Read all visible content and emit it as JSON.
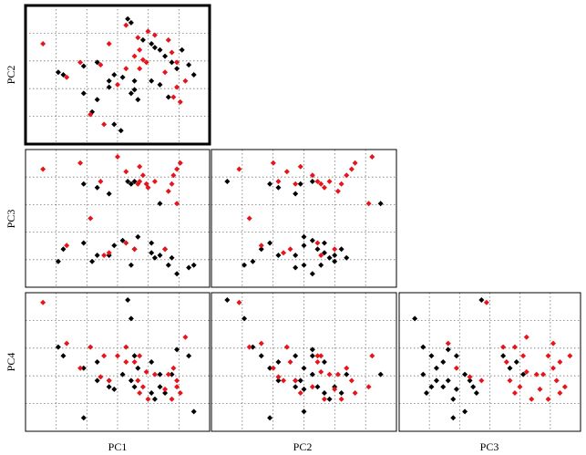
{
  "chart_data": {
    "type": "scatter",
    "layout": "lower-triangle scatter matrix",
    "variables": [
      "PC1",
      "PC2",
      "PC3",
      "PC4"
    ],
    "row_labels": [
      "PC2",
      "PC3",
      "PC4"
    ],
    "column_labels": [
      "PC1",
      "PC2",
      "PC3"
    ],
    "ranges": {
      "PC1": [
        0,
        1
      ],
      "PC2": [
        0,
        1
      ],
      "PC3": [
        0,
        1
      ],
      "PC4": [
        0,
        1
      ]
    },
    "grid": true,
    "grid_style": "dotted",
    "highlighted_panel": "PC2 vs PC1",
    "groups": [
      {
        "color": "#000000",
        "marker": "diamond"
      },
      {
        "color": "#e8141b",
        "marker": "diamond"
      }
    ],
    "panels": [
      {
        "x": "PC1",
        "y": "PC2",
        "groups": [
          [
            [
              0.56,
              0.95
            ],
            [
              0.58,
              0.92
            ],
            [
              0.15,
              0.52
            ],
            [
              0.18,
              0.5
            ],
            [
              0.3,
              0.57
            ],
            [
              0.38,
              0.6
            ],
            [
              0.45,
              0.45
            ],
            [
              0.48,
              0.5
            ],
            [
              0.53,
              0.48
            ],
            [
              0.6,
              0.45
            ],
            [
              0.7,
              0.75
            ],
            [
              0.72,
              0.72
            ],
            [
              0.75,
              0.7
            ],
            [
              0.78,
              0.65
            ],
            [
              0.82,
              0.6
            ],
            [
              0.85,
              0.55
            ],
            [
              0.92,
              0.58
            ],
            [
              0.95,
              0.5
            ],
            [
              0.3,
              0.35
            ],
            [
              0.38,
              0.3
            ],
            [
              0.45,
              0.4
            ],
            [
              0.58,
              0.35
            ],
            [
              0.6,
              0.38
            ],
            [
              0.62,
              0.3
            ],
            [
              0.7,
              0.45
            ],
            [
              0.75,
              0.42
            ],
            [
              0.8,
              0.32
            ],
            [
              0.35,
              0.2
            ],
            [
              0.48,
              0.1
            ],
            [
              0.52,
              0.05
            ],
            [
              0.88,
              0.7
            ],
            [
              0.65,
              0.78
            ]
          ],
          [
            [
              0.06,
              0.75
            ],
            [
              0.2,
              0.48
            ],
            [
              0.28,
              0.6
            ],
            [
              0.4,
              0.58
            ],
            [
              0.45,
              0.75
            ],
            [
              0.55,
              0.9
            ],
            [
              0.6,
              0.65
            ],
            [
              0.62,
              0.8
            ],
            [
              0.63,
              0.7
            ],
            [
              0.65,
              0.62
            ],
            [
              0.63,
              0.55
            ],
            [
              0.67,
              0.6
            ],
            [
              0.68,
              0.85
            ],
            [
              0.72,
              0.82
            ],
            [
              0.78,
              0.52
            ],
            [
              0.8,
              0.78
            ],
            [
              0.82,
              0.68
            ],
            [
              0.83,
              0.32
            ],
            [
              0.85,
              0.4
            ],
            [
              0.87,
              0.28
            ],
            [
              0.85,
              0.6
            ],
            [
              0.5,
              0.42
            ],
            [
              0.55,
              0.55
            ],
            [
              0.42,
              0.1
            ],
            [
              0.34,
              0.18
            ],
            [
              0.9,
              0.45
            ]
          ]
        ]
      },
      {
        "x": "PC2",
        "y": "PC3",
        "groups": [
          [
            [
              0.05,
              0.8
            ],
            [
              0.15,
              0.12
            ],
            [
              0.2,
              0.15
            ],
            [
              0.25,
              0.25
            ],
            [
              0.3,
              0.3
            ],
            [
              0.35,
              0.2
            ],
            [
              0.45,
              0.2
            ],
            [
              0.5,
              0.28
            ],
            [
              0.55,
              0.32
            ],
            [
              0.58,
              0.25
            ],
            [
              0.62,
              0.22
            ],
            [
              0.65,
              0.18
            ],
            [
              0.68,
              0.2
            ],
            [
              0.72,
              0.25
            ],
            [
              0.75,
              0.18
            ],
            [
              0.55,
              0.05
            ],
            [
              0.45,
              0.1
            ],
            [
              0.5,
              0.12
            ],
            [
              0.3,
              0.78
            ],
            [
              0.35,
              0.75
            ],
            [
              0.45,
              0.7
            ],
            [
              0.48,
              0.78
            ],
            [
              0.55,
              0.8
            ],
            [
              0.5,
              0.35
            ],
            [
              0.62,
              0.3
            ],
            [
              0.95,
              0.62
            ],
            [
              0.6,
              0.12
            ],
            [
              0.68,
              0.15
            ]
          ],
          [
            [
              0.12,
              0.9
            ],
            [
              0.25,
              0.28
            ],
            [
              0.32,
              0.95
            ],
            [
              0.35,
              0.8
            ],
            [
              0.38,
              0.22
            ],
            [
              0.4,
              0.88
            ],
            [
              0.42,
              0.25
            ],
            [
              0.45,
              0.78
            ],
            [
              0.48,
              0.92
            ],
            [
              0.55,
              0.85
            ],
            [
              0.58,
              0.8
            ],
            [
              0.6,
              0.78
            ],
            [
              0.62,
              0.75
            ],
            [
              0.65,
              0.8
            ],
            [
              0.68,
              0.25
            ],
            [
              0.7,
              0.72
            ],
            [
              0.72,
              0.78
            ],
            [
              0.75,
              0.85
            ],
            [
              0.78,
              0.9
            ],
            [
              0.8,
              0.95
            ],
            [
              0.88,
              0.62
            ],
            [
              0.9,
              1.0
            ],
            [
              0.58,
              0.3
            ],
            [
              0.6,
              0.2
            ],
            [
              0.18,
              0.5
            ]
          ]
        ]
      },
      {
        "x": "PC3",
        "y": "PC4",
        "groups": [
          [
            [
              0.45,
              1.0
            ],
            [
              0.05,
              0.85
            ],
            [
              0.1,
              0.62
            ],
            [
              0.15,
              0.55
            ],
            [
              0.18,
              0.45
            ],
            [
              0.22,
              0.5
            ],
            [
              0.25,
              0.35
            ],
            [
              0.3,
              0.28
            ],
            [
              0.35,
              0.4
            ],
            [
              0.4,
              0.3
            ],
            [
              0.42,
              0.25
            ],
            [
              0.28,
              0.2
            ],
            [
              0.15,
              0.3
            ],
            [
              0.12,
              0.25
            ],
            [
              0.1,
              0.4
            ],
            [
              0.25,
              0.6
            ],
            [
              0.3,
              0.55
            ],
            [
              0.35,
              0.1
            ],
            [
              0.28,
              0.05
            ],
            [
              0.38,
              0.35
            ],
            [
              0.22,
              0.3
            ],
            [
              0.18,
              0.35
            ],
            [
              0.58,
              0.55
            ],
            [
              0.62,
              0.45
            ],
            [
              0.66,
              0.5
            ],
            [
              0.7,
              0.4
            ]
          ],
          [
            [
              0.48,
              0.98
            ],
            [
              0.25,
              0.65
            ],
            [
              0.3,
              0.45
            ],
            [
              0.38,
              0.38
            ],
            [
              0.45,
              0.35
            ],
            [
              0.58,
              0.62
            ],
            [
              0.6,
              0.5
            ],
            [
              0.62,
              0.35
            ],
            [
              0.65,
              0.25
            ],
            [
              0.68,
              0.3
            ],
            [
              0.7,
              0.55
            ],
            [
              0.72,
              0.42
            ],
            [
              0.75,
              0.2
            ],
            [
              0.78,
              0.4
            ],
            [
              0.8,
              0.28
            ],
            [
              0.82,
              0.4
            ],
            [
              0.85,
              0.2
            ],
            [
              0.88,
              0.45
            ],
            [
              0.9,
              0.35
            ],
            [
              0.92,
              0.25
            ],
            [
              0.95,
              0.3
            ],
            [
              0.85,
              0.55
            ],
            [
              0.92,
              0.5
            ],
            [
              0.98,
              0.55
            ],
            [
              0.65,
              0.62
            ],
            [
              0.72,
              0.7
            ],
            [
              0.88,
              0.65
            ]
          ]
        ]
      }
    ]
  }
}
